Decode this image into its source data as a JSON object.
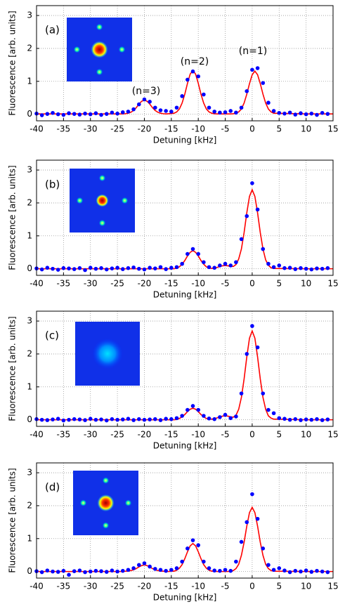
{
  "chart_data": [
    {
      "type": "scatter",
      "label": "(a)",
      "annotations": [
        "(n=3)",
        "(n=2)",
        "(n=1)"
      ],
      "xlabel": "Detuning [kHz]",
      "ylabel": "Fluorescence [arb. units]",
      "xlim": [
        -40,
        15
      ],
      "ylim": [
        -0.2,
        3.3
      ],
      "xticks": [
        -40,
        -35,
        -30,
        -25,
        -20,
        -15,
        -10,
        -5,
        0,
        5,
        10,
        15
      ],
      "yticks": [
        0,
        1,
        2,
        3
      ],
      "grid": true,
      "series": [
        {
          "type": "scatter",
          "color": "#0000ff",
          "x": [
            -40,
            -39,
            -38,
            -37,
            -36,
            -35,
            -34,
            -33,
            -32,
            -31,
            -30,
            -29,
            -28,
            -27,
            -26,
            -25,
            -24,
            -23,
            -22,
            -21,
            -20,
            -19,
            -18,
            -17,
            -16,
            -15,
            -14,
            -13,
            -12,
            -11,
            -10,
            -9,
            -8,
            -7,
            -6,
            -5,
            -4,
            -3,
            -2,
            -1,
            0,
            1,
            2,
            3,
            4,
            5,
            6,
            7,
            8,
            9,
            10,
            11,
            12,
            13,
            14
          ],
          "values": [
            0.02,
            -0.03,
            0.01,
            0.04,
            0,
            -0.02,
            0.03,
            0.01,
            -0.01,
            0.02,
            0,
            0.03,
            -0.02,
            0.01,
            0.05,
            0.02,
            0.06,
            0.08,
            0.15,
            0.3,
            0.45,
            0.38,
            0.2,
            0.12,
            0.1,
            0.08,
            0.2,
            0.55,
            1.05,
            1.3,
            1.15,
            0.6,
            0.2,
            0.08,
            0.05,
            0.06,
            0.1,
            0.05,
            0.2,
            0.7,
            1.35,
            1.4,
            0.95,
            0.35,
            0.1,
            0.04,
            0.02,
            0.05,
            -0.01,
            0.03,
            0,
            0.02,
            -0.02,
            0.04,
            0.01
          ]
        },
        {
          "type": "line",
          "color": "#ff0000",
          "x": [
            -40,
            -30,
            -24,
            -23.5,
            -23,
            -22.5,
            -22,
            -21.5,
            -21,
            -20.5,
            -20,
            -19.5,
            -19,
            -18.5,
            -18,
            -17.5,
            -17,
            -16.5,
            -16,
            -15.5,
            -15,
            -14.5,
            -14,
            -13.5,
            -13,
            -12.5,
            -12,
            -11.5,
            -11,
            -10.5,
            -10,
            -9.5,
            -9,
            -8.5,
            -8,
            -7.5,
            -7,
            -6.5,
            -6,
            -5.5,
            -5,
            -4.5,
            -4,
            -3.5,
            -3,
            -2.5,
            -2,
            -1.5,
            -1,
            -0.5,
            0,
            0.5,
            1,
            1.5,
            2,
            2.5,
            3,
            3.5,
            4,
            10,
            15
          ],
          "values": [
            0.01,
            0.01,
            0.01,
            0.016,
            0.03,
            0.06,
            0.115,
            0.2,
            0.31,
            0.395,
            0.43,
            0.395,
            0.31,
            0.2,
            0.115,
            0.06,
            0.03,
            0.016,
            0.01,
            0.015,
            0.02,
            0.03,
            0.07,
            0.16,
            0.34,
            0.61,
            0.94,
            1.22,
            1.33,
            1.22,
            0.94,
            0.61,
            0.34,
            0.16,
            0.07,
            0.03,
            0.015,
            0.01,
            0.01,
            0.01,
            0.01,
            0.01,
            0.01,
            0.015,
            0.03,
            0.07,
            0.16,
            0.34,
            0.61,
            0.93,
            1.2,
            1.31,
            1.2,
            0.93,
            0.61,
            0.34,
            0.16,
            0.07,
            0.03,
            0.01,
            0.01
          ]
        }
      ]
    },
    {
      "type": "scatter",
      "label": "(b)",
      "xlabel": "Detuning [kHz]",
      "ylabel": "Fluorescence [arb. units]",
      "xlim": [
        -40,
        15
      ],
      "ylim": [
        -0.2,
        3.3
      ],
      "xticks": [
        -40,
        -35,
        -30,
        -25,
        -20,
        -15,
        -10,
        -5,
        0,
        5,
        10,
        15
      ],
      "yticks": [
        0,
        1,
        2,
        3
      ],
      "grid": true,
      "series": [
        {
          "type": "scatter",
          "color": "#0000ff",
          "x": [
            -40,
            -39,
            -38,
            -37,
            -36,
            -35,
            -34,
            -33,
            -32,
            -31,
            -30,
            -29,
            -28,
            -27,
            -26,
            -25,
            -24,
            -23,
            -22,
            -21,
            -20,
            -19,
            -18,
            -17,
            -16,
            -15,
            -14,
            -13,
            -12,
            -11,
            -10,
            -9,
            -8,
            -7,
            -6,
            -5,
            -4,
            -3,
            -2,
            -1,
            0,
            1,
            2,
            3,
            4,
            5,
            6,
            7,
            8,
            9,
            10,
            11,
            12,
            13,
            14
          ],
          "values": [
            0.01,
            -0.02,
            0.03,
            0,
            -0.03,
            0.02,
            0.01,
            -0.01,
            0.02,
            -0.04,
            0.03,
            0,
            0.02,
            -0.02,
            0.01,
            0.03,
            -0.01,
            0.02,
            0.04,
            0,
            -0.02,
            0.03,
            0.01,
            0.05,
            -0.01,
            0.03,
            0.05,
            0.15,
            0.45,
            0.6,
            0.45,
            0.2,
            0.05,
            0.03,
            0.1,
            0.15,
            0.1,
            0.2,
            0.9,
            1.6,
            2.6,
            1.8,
            0.6,
            0.15,
            0.05,
            0.1,
            0.02,
            0.03,
            -0.01,
            0.02,
            0,
            -0.02,
            0.01,
            0,
            0.02
          ]
        },
        {
          "type": "line",
          "color": "#ff0000",
          "x": [
            -40,
            -30,
            -24,
            -23.5,
            -23,
            -22.5,
            -22,
            -21.5,
            -21,
            -20.5,
            -20,
            -19.5,
            -19,
            -18.5,
            -18,
            -17.5,
            -17,
            -16.5,
            -16,
            -15.5,
            -15,
            -14.5,
            -14,
            -13.5,
            -13,
            -12.5,
            -12,
            -11.5,
            -11,
            -10.5,
            -10,
            -9.5,
            -9,
            -8.5,
            -8,
            -7.5,
            -7,
            -6.5,
            -6,
            -5.5,
            -5,
            -4.5,
            -4,
            -3.5,
            -3,
            -2.5,
            -2,
            -1.5,
            -1,
            -0.5,
            0,
            0.5,
            1,
            1.5,
            2,
            2.5,
            3,
            3.5,
            4,
            10,
            15
          ],
          "values": [
            0,
            0,
            0,
            0,
            0,
            0,
            0,
            0,
            0,
            0,
            0,
            0,
            0,
            0,
            0,
            0,
            0,
            0,
            0,
            0,
            0,
            0,
            0.02,
            0.06,
            0.14,
            0.25,
            0.39,
            0.5,
            0.55,
            0.5,
            0.39,
            0.25,
            0.14,
            0.06,
            0.02,
            0.01,
            0.02,
            0.04,
            0.07,
            0.09,
            0.1,
            0.09,
            0.07,
            0.07,
            0.13,
            0.3,
            0.6,
            1.1,
            1.7,
            2.2,
            2.4,
            2.2,
            1.7,
            1.1,
            0.6,
            0.27,
            0.11,
            0.03,
            0.01,
            0,
            0
          ]
        }
      ]
    },
    {
      "type": "scatter",
      "label": "(c)",
      "xlabel": "Detuning [kHz]",
      "ylabel": "Fluorescence [arb. units]",
      "xlim": [
        -40,
        15
      ],
      "ylim": [
        -0.2,
        3.3
      ],
      "xticks": [
        -40,
        -35,
        -30,
        -25,
        -20,
        -15,
        -10,
        -5,
        0,
        5,
        10,
        15
      ],
      "yticks": [
        0,
        1,
        2,
        3
      ],
      "grid": true,
      "series": [
        {
          "type": "scatter",
          "color": "#0000ff",
          "x": [
            -40,
            -39,
            -38,
            -37,
            -36,
            -35,
            -34,
            -33,
            -32,
            -31,
            -30,
            -29,
            -28,
            -27,
            -26,
            -25,
            -24,
            -23,
            -22,
            -21,
            -20,
            -19,
            -18,
            -17,
            -16,
            -15,
            -14,
            -13,
            -12,
            -11,
            -10,
            -9,
            -8,
            -7,
            -6,
            -5,
            -4,
            -3,
            -2,
            -1,
            0,
            1,
            2,
            3,
            4,
            5,
            6,
            7,
            8,
            9,
            10,
            11,
            12,
            13,
            14
          ],
          "values": [
            0.02,
            0,
            -0.01,
            0.01,
            0.03,
            -0.02,
            0,
            0.02,
            0.01,
            -0.01,
            0.03,
            0,
            0.01,
            -0.02,
            0.02,
            0,
            0.01,
            0.03,
            -0.01,
            0.02,
            0,
            0.01,
            0.02,
            -0.01,
            0.03,
            0.02,
            0.05,
            0.12,
            0.3,
            0.42,
            0.3,
            0.12,
            0.04,
            0.02,
            0.08,
            0.15,
            0.05,
            0.1,
            0.8,
            2,
            2.85,
            2.2,
            0.8,
            0.3,
            0.2,
            0.05,
            0.03,
            0,
            0.02,
            -0.01,
            0.01,
            0,
            0.02,
            -0.01,
            0.01
          ]
        },
        {
          "type": "line",
          "color": "#ff0000",
          "x": [
            -40,
            -30,
            -24,
            -23.5,
            -23,
            -22.5,
            -22,
            -21.5,
            -21,
            -20.5,
            -20,
            -19.5,
            -19,
            -18.5,
            -18,
            -17.5,
            -17,
            -16.5,
            -16,
            -15.5,
            -15,
            -14.5,
            -14,
            -13.5,
            -13,
            -12.5,
            -12,
            -11.5,
            -11,
            -10.5,
            -10,
            -9.5,
            -9,
            -8.5,
            -8,
            -7.5,
            -7,
            -6.5,
            -6,
            -5.5,
            -5,
            -4.5,
            -4,
            -3.5,
            -3,
            -2.5,
            -2,
            -1.5,
            -1,
            -0.5,
            0,
            0.5,
            1,
            1.5,
            2,
            2.5,
            3,
            3.5,
            4,
            10,
            15
          ],
          "values": [
            0,
            0,
            0,
            0,
            0,
            0,
            0,
            0,
            0,
            0,
            0,
            0,
            0,
            0,
            0,
            0,
            0,
            0,
            0,
            0,
            0,
            0,
            0.01,
            0.04,
            0.09,
            0.16,
            0.25,
            0.32,
            0.35,
            0.32,
            0.25,
            0.16,
            0.09,
            0.04,
            0.02,
            0.02,
            0.03,
            0.06,
            0.09,
            0.11,
            0.12,
            0.11,
            0.09,
            0.08,
            0.14,
            0.32,
            0.68,
            1.24,
            1.91,
            2.48,
            2.7,
            2.48,
            1.91,
            1.24,
            0.68,
            0.32,
            0.12,
            0.05,
            0.02,
            0,
            0
          ]
        }
      ]
    },
    {
      "type": "scatter",
      "label": "(d)",
      "xlabel": "Detuning [kHz]",
      "ylabel": "Fluorescence [arb. units]",
      "xlim": [
        -40,
        15
      ],
      "ylim": [
        -0.2,
        3.3
      ],
      "xticks": [
        -40,
        -35,
        -30,
        -25,
        -20,
        -15,
        -10,
        -5,
        0,
        5,
        10,
        15
      ],
      "yticks": [
        0,
        1,
        2,
        3
      ],
      "grid": true,
      "series": [
        {
          "type": "scatter",
          "color": "#0000ff",
          "x": [
            -40,
            -39,
            -38,
            -37,
            -36,
            -35,
            -34,
            -33,
            -32,
            -31,
            -30,
            -29,
            -28,
            -27,
            -26,
            -25,
            -24,
            -23,
            -22,
            -21,
            -20,
            -19,
            -18,
            -17,
            -16,
            -15,
            -14,
            -13,
            -12,
            -11,
            -10,
            -9,
            -8,
            -7,
            -6,
            -5,
            -4,
            -3,
            -2,
            -1,
            0,
            1,
            2,
            3,
            4,
            5,
            6,
            7,
            8,
            9,
            10,
            11,
            12,
            13,
            14
          ],
          "values": [
            0.01,
            -0.02,
            0.03,
            0,
            -0.01,
            0.02,
            -0.1,
            0.01,
            0.03,
            -0.02,
            0,
            0.02,
            0.01,
            -0.01,
            0.03,
            0,
            0.02,
            0.05,
            0.1,
            0.2,
            0.25,
            0.15,
            0.08,
            0.05,
            0.02,
            0.05,
            0.1,
            0.3,
            0.7,
            0.95,
            0.8,
            0.3,
            0.1,
            0.03,
            0.02,
            0.05,
            0.02,
            0.3,
            0.9,
            1.5,
            2.35,
            1.6,
            0.7,
            0.2,
            0.05,
            0.1,
            0.03,
            -0.02,
            0.02,
            0,
            0.03,
            -0.01,
            0.02,
            0,
            -0.02
          ]
        },
        {
          "type": "line",
          "color": "#ff0000",
          "x": [
            -40,
            -30,
            -24,
            -23.5,
            -23,
            -22.5,
            -22,
            -21.5,
            -21,
            -20.5,
            -20,
            -19.5,
            -19,
            -18.5,
            -18,
            -17.5,
            -17,
            -16.5,
            -16,
            -15.5,
            -15,
            -14.5,
            -14,
            -13.5,
            -13,
            -12.5,
            -12,
            -11.5,
            -11,
            -10.5,
            -10,
            -9.5,
            -9,
            -8.5,
            -8,
            -7.5,
            -7,
            -6.5,
            -6,
            -5.5,
            -5,
            -4.5,
            -4,
            -3.5,
            -3,
            -2.5,
            -2,
            -1.5,
            -1,
            -0.5,
            0,
            0.5,
            1,
            1.5,
            2,
            2.5,
            3,
            3.5,
            4,
            10,
            15
          ],
          "values": [
            0,
            0,
            0,
            0.01,
            0.01,
            0.03,
            0.05,
            0.09,
            0.14,
            0.18,
            0.2,
            0.18,
            0.14,
            0.09,
            0.05,
            0.03,
            0.01,
            0.01,
            0,
            0,
            0.01,
            0.01,
            0.04,
            0.1,
            0.21,
            0.39,
            0.6,
            0.78,
            0.85,
            0.78,
            0.6,
            0.39,
            0.21,
            0.1,
            0.04,
            0.01,
            0.01,
            0,
            0,
            0,
            0,
            0,
            0.01,
            0.03,
            0.09,
            0.22,
            0.49,
            0.89,
            1.38,
            1.79,
            1.95,
            1.79,
            1.38,
            0.89,
            0.49,
            0.22,
            0.09,
            0.03,
            0.01,
            0,
            0
          ]
        }
      ]
    }
  ]
}
